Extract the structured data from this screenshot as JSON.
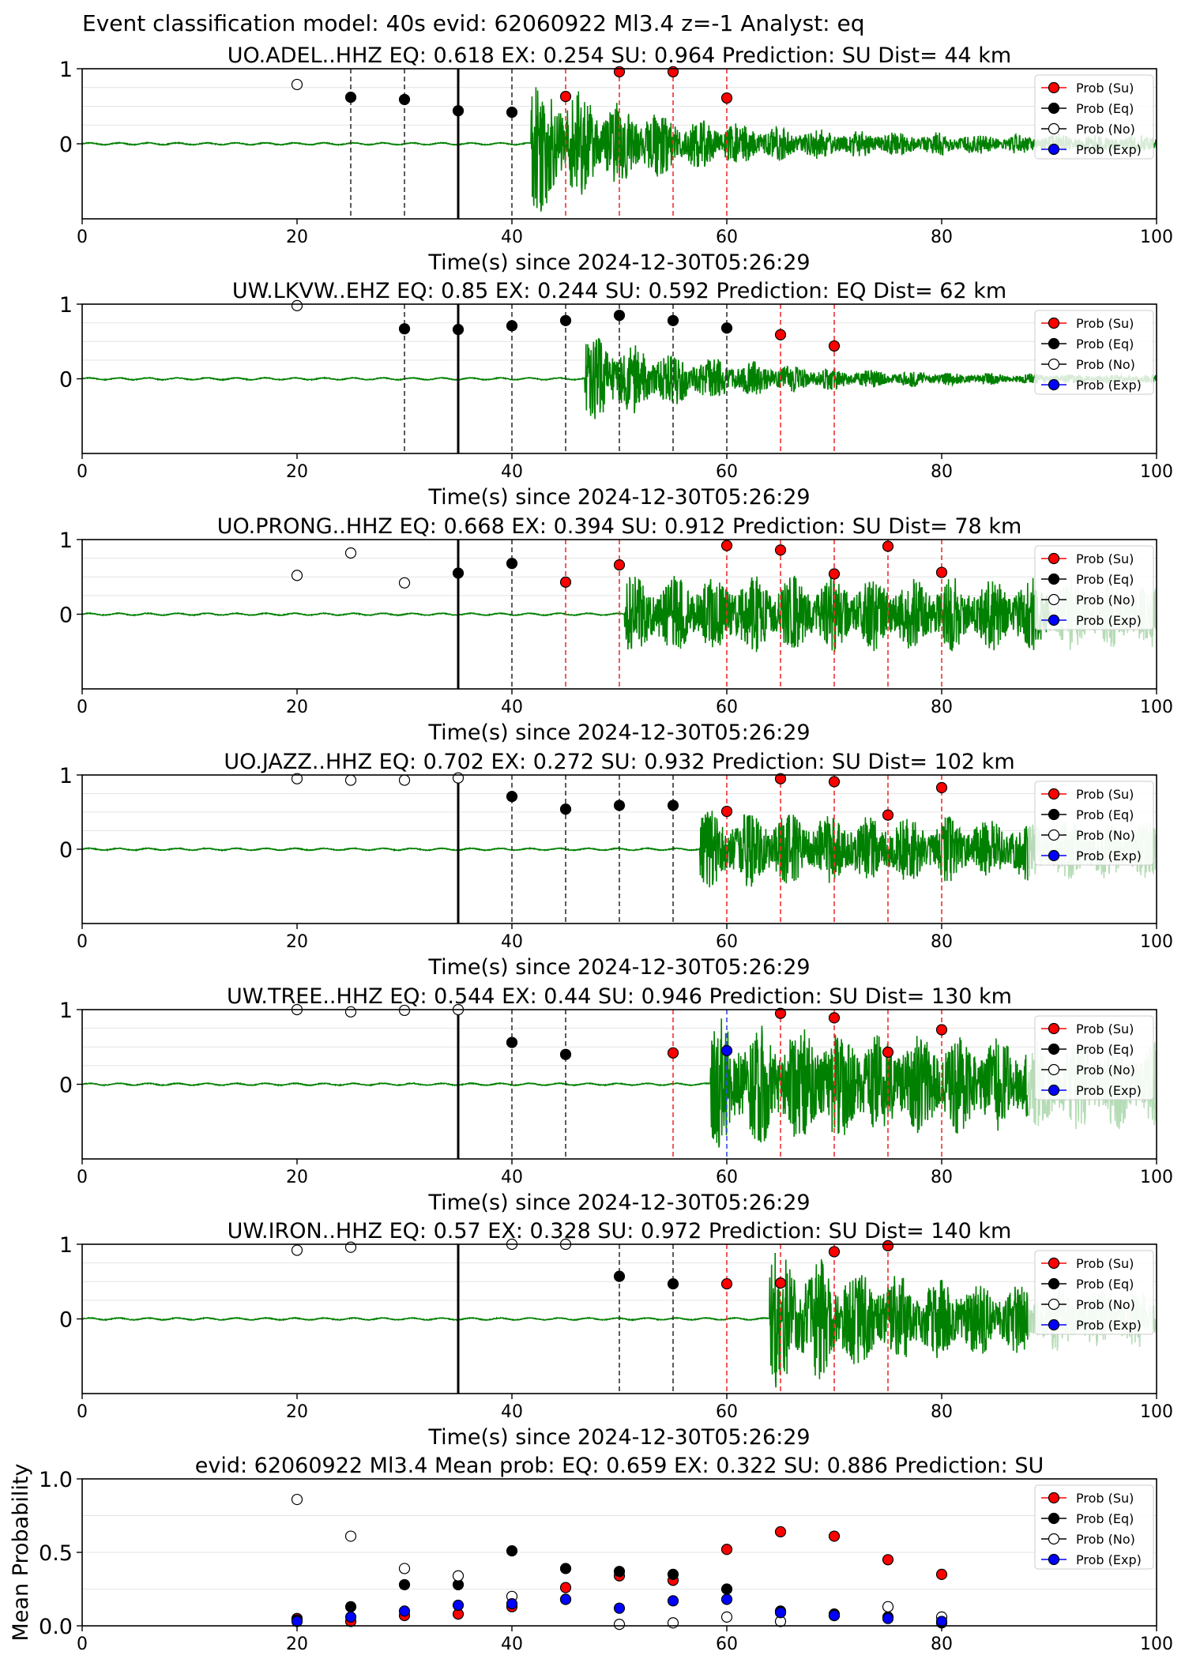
{
  "figure_title": "Event classification model: 40s evid: 62060922 Ml3.4 z=-1 Analyst: eq",
  "legend_labels": [
    "Prob (Su)",
    "Prob (Eq)",
    "Prob (No)",
    "Prob (Exp)"
  ],
  "colors": {
    "su": "#ff0000",
    "eq": "#000000",
    "no": "#ffffff",
    "exp": "#0000ff",
    "waveform": "#008000",
    "waveform_tail": "#b5dcb5"
  },
  "chart_data": [
    {
      "type": "scatter",
      "title": "UO.ADEL..HHZ   EQ: 0.618  EX: 0.254  SU: 0.964   Prediction: SU    Dist= 44 km",
      "xlabel": "Time(s) since 2024-12-30T05:26:29",
      "xlim": [
        0,
        100
      ],
      "ylim": [
        -1,
        1
      ],
      "xticks": [
        "0",
        "20",
        "40",
        "60",
        "80",
        "100"
      ],
      "yticks": [
        "0",
        "1"
      ],
      "waveform": {
        "onset": 41.8,
        "end": 100,
        "amp_early": 1.0,
        "amp_late": 0.12,
        "decay": 12,
        "faded_after": 100
      },
      "t0_line": 35,
      "eq_lines": [
        25,
        30,
        40
      ],
      "su_lines": [
        45,
        50,
        55,
        60
      ],
      "exp_lines": [],
      "series": [
        {
          "name": "Prob (Su)",
          "x": [
            45,
            50,
            55,
            60
          ],
          "y": [
            0.63,
            0.96,
            0.96,
            0.61
          ]
        },
        {
          "name": "Prob (Eq)",
          "x": [
            25,
            30,
            35,
            40
          ],
          "y": [
            0.62,
            0.59,
            0.44,
            0.42
          ]
        },
        {
          "name": "Prob (No)",
          "x": [
            20
          ],
          "y": [
            0.79
          ]
        },
        {
          "name": "Prob (Exp)",
          "x": [],
          "y": []
        }
      ]
    },
    {
      "type": "scatter",
      "title": "UW.LKVW..EHZ   EQ: 0.85  EX: 0.244  SU: 0.592   Prediction: EQ    Dist= 62 km",
      "xlabel": "Time(s) since 2024-12-30T05:26:29",
      "xlim": [
        0,
        100
      ],
      "ylim": [
        -1,
        1
      ],
      "xticks": [
        "0",
        "20",
        "40",
        "60",
        "80",
        "100"
      ],
      "yticks": [
        "0",
        "1"
      ],
      "waveform": {
        "onset": 46.8,
        "end": 100,
        "amp_early": 0.65,
        "amp_late": 0.04,
        "decay": 14,
        "faded_after": 100
      },
      "t0_line": 35,
      "eq_lines": [
        30,
        40,
        45,
        50,
        55,
        60
      ],
      "su_lines": [
        65,
        70
      ],
      "exp_lines": [],
      "series": [
        {
          "name": "Prob (Su)",
          "x": [
            65,
            70
          ],
          "y": [
            0.59,
            0.44
          ]
        },
        {
          "name": "Prob (Eq)",
          "x": [
            30,
            35,
            40,
            45,
            50,
            55,
            60
          ],
          "y": [
            0.67,
            0.66,
            0.71,
            0.78,
            0.85,
            0.78,
            0.68
          ]
        },
        {
          "name": "Prob (No)",
          "x": [
            20
          ],
          "y": [
            0.98
          ]
        },
        {
          "name": "Prob (Exp)",
          "x": [],
          "y": []
        }
      ]
    },
    {
      "type": "scatter",
      "title": "UO.PRONG..HHZ   EQ: 0.668  EX: 0.394  SU: 0.912   Prediction: SU    Dist= 78 km",
      "xlabel": "Time(s) since 2024-12-30T05:26:29",
      "xlim": [
        0,
        100
      ],
      "ylim": [
        -1,
        1
      ],
      "xticks": [
        "0",
        "20",
        "40",
        "60",
        "80",
        "100"
      ],
      "yticks": [
        "0",
        "1"
      ],
      "waveform": {
        "onset": 50.5,
        "end": 100,
        "amp_early": 0.55,
        "amp_late": 0.45,
        "decay": 40,
        "faded_after": 90
      },
      "t0_line": 35,
      "eq_lines": [
        40
      ],
      "su_lines": [
        45,
        50,
        60,
        65,
        70,
        75,
        80
      ],
      "exp_lines": [],
      "series": [
        {
          "name": "Prob (Su)",
          "x": [
            45,
            50,
            60,
            65,
            70,
            75,
            80
          ],
          "y": [
            0.43,
            0.66,
            0.92,
            0.86,
            0.54,
            0.91,
            0.56
          ]
        },
        {
          "name": "Prob (Eq)",
          "x": [
            35,
            40
          ],
          "y": [
            0.55,
            0.68
          ]
        },
        {
          "name": "Prob (No)",
          "x": [
            20,
            25,
            30
          ],
          "y": [
            0.52,
            0.82,
            0.42
          ]
        },
        {
          "name": "Prob (Exp)",
          "x": [],
          "y": []
        }
      ]
    },
    {
      "type": "scatter",
      "title": "UO.JAZZ..HHZ   EQ: 0.702  EX: 0.272  SU: 0.932   Prediction: SU    Dist= 102 km",
      "xlabel": "Time(s) since 2024-12-30T05:26:29",
      "xlim": [
        0,
        100
      ],
      "ylim": [
        -1,
        1
      ],
      "xticks": [
        "0",
        "20",
        "40",
        "60",
        "80",
        "100"
      ],
      "yticks": [
        "0",
        "1"
      ],
      "waveform": {
        "onset": 57.5,
        "end": 100,
        "amp_early": 0.55,
        "amp_late": 0.35,
        "decay": 30,
        "faded_after": 88
      },
      "t0_line": 35,
      "eq_lines": [
        40,
        45,
        50,
        55
      ],
      "su_lines": [
        60,
        65,
        70,
        75,
        80
      ],
      "exp_lines": [],
      "series": [
        {
          "name": "Prob (Su)",
          "x": [
            60,
            65,
            70,
            75,
            80
          ],
          "y": [
            0.51,
            0.95,
            0.91,
            0.46,
            0.83
          ]
        },
        {
          "name": "Prob (Eq)",
          "x": [
            40,
            45,
            50,
            55
          ],
          "y": [
            0.71,
            0.54,
            0.59,
            0.59
          ]
        },
        {
          "name": "Prob (No)",
          "x": [
            20,
            25,
            30,
            35
          ],
          "y": [
            0.95,
            0.93,
            0.93,
            0.96
          ]
        },
        {
          "name": "Prob (Exp)",
          "x": [],
          "y": []
        }
      ]
    },
    {
      "type": "scatter",
      "title": "UW.TREE..HHZ   EQ: 0.544  EX: 0.44  SU: 0.946   Prediction: SU    Dist= 130 km",
      "xlabel": "Time(s) since 2024-12-30T05:26:29",
      "xlim": [
        0,
        100
      ],
      "ylim": [
        -1,
        1
      ],
      "xticks": [
        "0",
        "20",
        "40",
        "60",
        "80",
        "100"
      ],
      "yticks": [
        "0",
        "1"
      ],
      "waveform": {
        "onset": 58.5,
        "end": 100,
        "amp_early": 0.9,
        "amp_late": 0.55,
        "decay": 25,
        "faded_after": 88
      },
      "t0_line": 35,
      "eq_lines": [
        40,
        45
      ],
      "su_lines": [
        55,
        65,
        70,
        75,
        80
      ],
      "exp_lines": [
        60
      ],
      "series": [
        {
          "name": "Prob (Su)",
          "x": [
            55,
            65,
            70,
            75,
            80
          ],
          "y": [
            0.42,
            0.95,
            0.89,
            0.43,
            0.73
          ]
        },
        {
          "name": "Prob (Eq)",
          "x": [
            40,
            45
          ],
          "y": [
            0.56,
            0.4
          ]
        },
        {
          "name": "Prob (No)",
          "x": [
            20,
            25,
            30,
            35
          ],
          "y": [
            1.0,
            0.97,
            0.99,
            1.0
          ]
        },
        {
          "name": "Prob (Exp)",
          "x": [
            60
          ],
          "y": [
            0.45
          ]
        }
      ]
    },
    {
      "type": "scatter",
      "title": "UW.IRON..HHZ   EQ: 0.57  EX: 0.328  SU: 0.972   Prediction: SU    Dist= 140 km",
      "xlabel": "Time(s) since 2024-12-30T05:26:29",
      "xlim": [
        0,
        100
      ],
      "ylim": [
        -1,
        1
      ],
      "xticks": [
        "0",
        "20",
        "40",
        "60",
        "80",
        "100"
      ],
      "yticks": [
        "0",
        "1"
      ],
      "waveform": {
        "onset": 64,
        "end": 100,
        "amp_early": 1.0,
        "amp_late": 0.35,
        "decay": 14,
        "faded_after": 88
      },
      "t0_line": 35,
      "eq_lines": [
        50,
        55
      ],
      "su_lines": [
        60,
        65,
        70,
        75
      ],
      "exp_lines": [],
      "series": [
        {
          "name": "Prob (Su)",
          "x": [
            60,
            65,
            70,
            75
          ],
          "y": [
            0.47,
            0.48,
            0.9,
            0.98
          ]
        },
        {
          "name": "Prob (Eq)",
          "x": [
            50,
            55
          ],
          "y": [
            0.57,
            0.47
          ]
        },
        {
          "name": "Prob (No)",
          "x": [
            20,
            25,
            40,
            45
          ],
          "y": [
            0.92,
            0.96,
            1.0,
            1.0
          ]
        },
        {
          "name": "Prob (Exp)",
          "x": [],
          "y": []
        }
      ]
    },
    {
      "type": "scatter",
      "title": "evid: 62060922  Ml3.4   Mean prob:   EQ: 0.659  EX: 0.322  SU: 0.886   Prediction: SU",
      "xlabel": "",
      "ylabel": "Mean Probability",
      "xlim": [
        0,
        100
      ],
      "ylim": [
        0,
        1
      ],
      "xticks": [
        "0",
        "20",
        "40",
        "60",
        "80",
        "100"
      ],
      "yticks": [
        "0.0",
        "0.5",
        "1.0"
      ],
      "series": [
        {
          "name": "Prob (Su)",
          "x": [
            20,
            25,
            30,
            35,
            40,
            45,
            50,
            55,
            60,
            65,
            70,
            75,
            80
          ],
          "y": [
            0.05,
            0.03,
            0.07,
            0.08,
            0.13,
            0.26,
            0.34,
            0.31,
            0.52,
            0.64,
            0.61,
            0.45,
            0.35
          ]
        },
        {
          "name": "Prob (Eq)",
          "x": [
            20,
            25,
            30,
            35,
            40,
            45,
            50,
            55,
            60,
            65,
            70,
            75,
            80
          ],
          "y": [
            0.04,
            0.13,
            0.28,
            0.28,
            0.51,
            0.39,
            0.37,
            0.35,
            0.25,
            0.1,
            0.08,
            0.06,
            0.02
          ]
        },
        {
          "name": "Prob (No)",
          "x": [
            20,
            25,
            30,
            35,
            40,
            45,
            50,
            55,
            60,
            65,
            70,
            75,
            80
          ],
          "y": [
            0.86,
            0.61,
            0.39,
            0.34,
            0.2,
            0.18,
            0.01,
            0.02,
            0.06,
            0.03,
            0.07,
            0.13,
            0.06
          ]
        },
        {
          "name": "Prob (Exp)",
          "x": [
            20,
            25,
            30,
            35,
            40,
            45,
            50,
            55,
            60,
            65,
            70,
            75,
            80
          ],
          "y": [
            0.03,
            0.06,
            0.1,
            0.14,
            0.15,
            0.18,
            0.12,
            0.17,
            0.18,
            0.09,
            0.07,
            0.05,
            0.03
          ]
        }
      ]
    }
  ]
}
